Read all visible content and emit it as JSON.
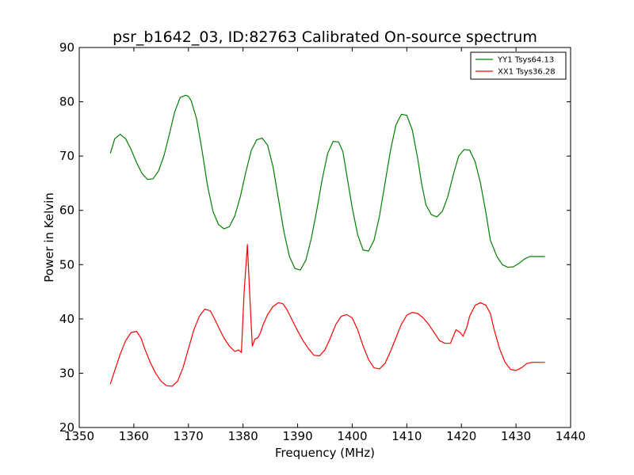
{
  "chart_data": {
    "type": "line",
    "title": "psr_b1642_03, ID:82763 Calibrated On-source spectrum",
    "xlabel": "Frequency (MHz)",
    "ylabel": "Power in Kelvin",
    "xlim": [
      1350,
      1440
    ],
    "ylim": [
      20,
      90
    ],
    "xticks": [
      1350,
      1360,
      1370,
      1380,
      1390,
      1400,
      1410,
      1420,
      1430,
      1440
    ],
    "yticks": [
      20,
      30,
      40,
      50,
      60,
      70,
      80,
      90
    ],
    "xtick_labels": [
      "1350",
      "1360",
      "1370",
      "1380",
      "1390",
      "1400",
      "1410",
      "1420",
      "1430",
      "1440"
    ],
    "ytick_labels": [
      "20",
      "30",
      "40",
      "50",
      "60",
      "70",
      "80",
      "90"
    ],
    "grid": false,
    "legend_position": "top-right",
    "series": [
      {
        "name": "YY1 Tsys64.13",
        "color": "#008000",
        "x": [
          1355.7,
          1356.5,
          1357.5,
          1358.5,
          1359.5,
          1360.5,
          1361.5,
          1362.5,
          1363.5,
          1364.5,
          1365.5,
          1366.5,
          1367.5,
          1368.5,
          1369.5,
          1370.0,
          1370.5,
          1371.5,
          1372.5,
          1373.5,
          1374.5,
          1375.5,
          1376.5,
          1377.5,
          1378.5,
          1379.5,
          1380.5,
          1381.5,
          1382.5,
          1383.5,
          1384.5,
          1385.5,
          1386.5,
          1387.5,
          1388.5,
          1389.5,
          1390.5,
          1391.5,
          1392.5,
          1393.5,
          1394.5,
          1395.5,
          1396.5,
          1397.5,
          1398.3,
          1399.0,
          1400.0,
          1401.0,
          1402.0,
          1403.0,
          1404.0,
          1405.0,
          1406.0,
          1407.0,
          1408.0,
          1409.0,
          1410.0,
          1411.0,
          1412.0,
          1412.7,
          1413.5,
          1414.5,
          1415.5,
          1416.5,
          1417.5,
          1418.5,
          1419.5,
          1420.5,
          1421.5,
          1422.5,
          1423.5,
          1424.5,
          1425.3,
          1426.5,
          1427.5,
          1428.5,
          1429.5,
          1430.5,
          1431.5,
          1432.5,
          1433.5,
          1434.5,
          1435.3
        ],
        "values": [
          70.5,
          73.2,
          74.0,
          73.2,
          71.2,
          68.8,
          66.8,
          65.7,
          65.8,
          67.2,
          70.0,
          74.0,
          78.2,
          80.8,
          81.2,
          81.0,
          80.2,
          76.8,
          71.0,
          64.5,
          59.8,
          57.4,
          56.6,
          57.0,
          59.0,
          62.5,
          67.0,
          71.0,
          73.0,
          73.3,
          72.0,
          68.0,
          62.0,
          56.0,
          51.5,
          49.3,
          49.0,
          50.8,
          54.8,
          60.0,
          65.7,
          70.5,
          72.7,
          72.6,
          70.8,
          66.5,
          60.5,
          55.5,
          52.7,
          52.5,
          54.5,
          59.0,
          65.0,
          71.0,
          75.7,
          77.7,
          77.5,
          74.8,
          69.5,
          65.0,
          61.0,
          59.2,
          58.8,
          59.8,
          62.5,
          66.5,
          70.0,
          71.2,
          71.1,
          69.0,
          65.0,
          59.5,
          54.5,
          51.5,
          50.0,
          49.5,
          49.6,
          50.2,
          51.0,
          51.5,
          51.5,
          51.5,
          51.5
        ]
      },
      {
        "name": "XX1 Tsys36.28",
        "color": "#ff0000",
        "x": [
          1355.7,
          1356.5,
          1357.5,
          1358.5,
          1359.5,
          1360.5,
          1361.3,
          1362.0,
          1363.0,
          1364.0,
          1365.0,
          1366.0,
          1367.0,
          1368.0,
          1369.0,
          1370.0,
          1371.0,
          1372.0,
          1373.0,
          1374.0,
          1374.8,
          1375.5,
          1376.5,
          1377.5,
          1378.5,
          1379.2,
          1379.7,
          1380.2,
          1380.8,
          1381.2,
          1381.7,
          1382.2,
          1382.7,
          1383.2,
          1383.7,
          1384.5,
          1385.5,
          1386.5,
          1387.3,
          1388.0,
          1389.0,
          1390.0,
          1391.0,
          1392.0,
          1393.0,
          1394.0,
          1395.0,
          1396.0,
          1397.0,
          1398.0,
          1399.0,
          1400.0,
          1401.0,
          1402.0,
          1403.0,
          1404.0,
          1405.0,
          1406.0,
          1407.0,
          1408.0,
          1409.0,
          1410.0,
          1411.0,
          1412.0,
          1413.0,
          1414.0,
          1415.0,
          1416.0,
          1417.0,
          1418.0,
          1419.0,
          1419.8,
          1420.3,
          1421.0,
          1421.5,
          1422.5,
          1423.5,
          1424.5,
          1425.3,
          1426.0,
          1427.0,
          1428.0,
          1429.0,
          1430.0,
          1431.0,
          1432.0,
          1433.0,
          1434.0,
          1435.3
        ],
        "values": [
          28.0,
          30.5,
          33.5,
          36.0,
          37.5,
          37.7,
          36.5,
          34.5,
          32.0,
          30.0,
          28.5,
          27.7,
          27.6,
          28.5,
          31.0,
          34.5,
          38.0,
          40.5,
          41.8,
          41.5,
          40.0,
          38.5,
          36.5,
          35.0,
          34.0,
          34.3,
          33.8,
          45.0,
          53.7,
          45.0,
          35.0,
          36.3,
          36.5,
          37.5,
          39.0,
          40.8,
          42.3,
          43.0,
          42.8,
          41.8,
          39.8,
          37.8,
          36.0,
          34.5,
          33.3,
          33.2,
          34.3,
          36.5,
          39.0,
          40.5,
          40.8,
          40.2,
          38.0,
          35.0,
          32.5,
          31.0,
          30.8,
          31.8,
          34.0,
          36.5,
          39.0,
          40.7,
          41.2,
          41.0,
          40.2,
          39.0,
          37.5,
          36.0,
          35.5,
          35.5,
          38.0,
          37.5,
          36.8,
          38.5,
          40.5,
          42.5,
          43.0,
          42.5,
          41.0,
          38.0,
          34.5,
          32.0,
          30.7,
          30.5,
          31.0,
          31.8,
          32.0,
          32.0,
          32.0
        ]
      }
    ]
  }
}
